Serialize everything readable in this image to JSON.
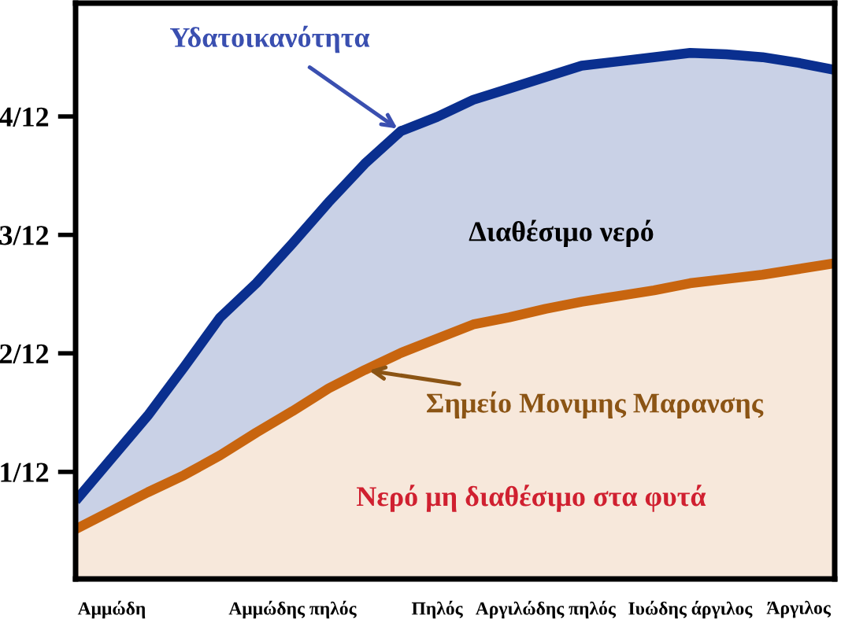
{
  "chart_data": {
    "type": "area",
    "annotations": [
      "Διαθέσιμο νερό",
      "Νερό μη διαθέσιμο στα φυτά"
    ],
    "categories": [
      null,
      "Αμμώδη",
      null,
      null,
      null,
      null,
      "Αμμώδης πηλός",
      null,
      null,
      null,
      "Πηλός",
      null,
      null,
      "Αργιλώδης πηλός",
      null,
      null,
      null,
      "Ιυώδης άργιλος",
      null,
      null,
      "Άργιλος",
      null
    ],
    "series": [
      {
        "name": "Υδατοικανότητα",
        "color": "#0a2f8f",
        "values": [
          0.063,
          0.093,
          0.123,
          0.157,
          0.192,
          0.216,
          0.244,
          0.273,
          0.3,
          0.323,
          0.333,
          0.345,
          0.353,
          0.361,
          0.369,
          0.372,
          0.375,
          0.378,
          0.377,
          0.375,
          0.371,
          0.366
        ]
      },
      {
        "name": "Σημείο Μονιμης Μαρανσης",
        "color": "#c8650f",
        "values": [
          0.043,
          0.056,
          0.069,
          0.081,
          0.095,
          0.111,
          0.126,
          0.142,
          0.155,
          0.167,
          0.177,
          0.187,
          0.192,
          0.198,
          0.203,
          0.207,
          0.211,
          0.216,
          0.219,
          0.222,
          0.226,
          0.23
        ]
      }
    ],
    "ylim": [
      0.008,
      0.413
    ],
    "yticks": [
      {
        "value": 0.0833,
        "label": "1/12"
      },
      {
        "value": 0.1667,
        "label": "2/12"
      },
      {
        "value": 0.25,
        "label": "3/12"
      },
      {
        "value": 0.3333,
        "label": "4/12"
      }
    ],
    "grid": false,
    "legend": false
  }
}
